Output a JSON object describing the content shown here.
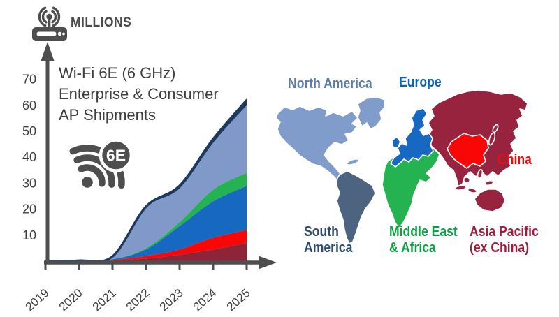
{
  "header": {
    "units_label": "MILLIONS",
    "units_icon": "wireless-router-icon"
  },
  "chart": {
    "title_lines": [
      "Wi-Fi 6E (6 GHz)",
      "Enterprise & Consumer",
      "AP Shipments"
    ],
    "badge_label": "6E",
    "badge_icon": "wifi-6e-badge-icon",
    "axis_color": "#4e4e4e",
    "outline_color": "#1d3a5e",
    "tick_color": "#3f3f3f"
  },
  "chart_data": {
    "type": "area",
    "stacked": true,
    "title": "Wi-Fi 6E (6 GHz) Enterprise & Consumer AP Shipments",
    "ylabel": "MILLIONS",
    "x": [
      2019,
      2020,
      2021,
      2022,
      2023,
      2024,
      2025
    ],
    "y_ticks": [
      70,
      60,
      50,
      40,
      30,
      20,
      10
    ],
    "ylim": [
      0,
      75
    ],
    "grid": false,
    "legend_position": "map-right",
    "series": [
      {
        "name": "Asia Pacific (ex China)",
        "color": "#8e2438",
        "values": [
          0,
          0,
          0.2,
          1,
          2.5,
          4.5,
          7
        ]
      },
      {
        "name": "China",
        "color": "#f90606",
        "values": [
          0,
          0,
          0.2,
          1,
          2,
          4.5,
          5
        ]
      },
      {
        "name": "Europe",
        "color": "#1668c0",
        "values": [
          0,
          0,
          0.3,
          2.5,
          9,
          14,
          17
        ]
      },
      {
        "name": "Middle East & Africa",
        "color": "#25b250",
        "values": [
          0,
          0,
          0,
          0.5,
          1.5,
          4.5,
          5
        ]
      },
      {
        "name": "North America",
        "color": "#8199c8",
        "values": [
          0,
          0.2,
          1,
          15.5,
          13,
          18,
          26
        ]
      },
      {
        "name": "South America",
        "color": "#1d3a5e",
        "values": [
          0,
          0,
          0.1,
          0.5,
          1,
          1.5,
          2
        ]
      }
    ]
  },
  "map": {
    "regions": [
      {
        "name": "North America",
        "label_lines": [
          "North America"
        ],
        "fill": "#7f9cca",
        "label_color": "#5c7ca8"
      },
      {
        "name": "Europe",
        "label_lines": [
          "Europe"
        ],
        "fill": "#1668c0",
        "label_color": "#0e63b8"
      },
      {
        "name": "China",
        "label_lines": [
          "China"
        ],
        "fill": "#fa0606",
        "label_color": "#f20b0b"
      },
      {
        "name": "South America",
        "label_lines": [
          "South",
          "America"
        ],
        "fill": "#4c6480",
        "label_color": "#2e4b6d"
      },
      {
        "name": "Middle East & Africa",
        "label_lines": [
          "Middle East",
          "& Africa"
        ],
        "fill": "#25b250",
        "label_color": "#0ea245"
      },
      {
        "name": "Asia Pacific (ex China)",
        "label_lines": [
          "Asia Pacific",
          "(ex China)"
        ],
        "fill": "#97233f",
        "label_color": "#a01f41"
      }
    ]
  }
}
